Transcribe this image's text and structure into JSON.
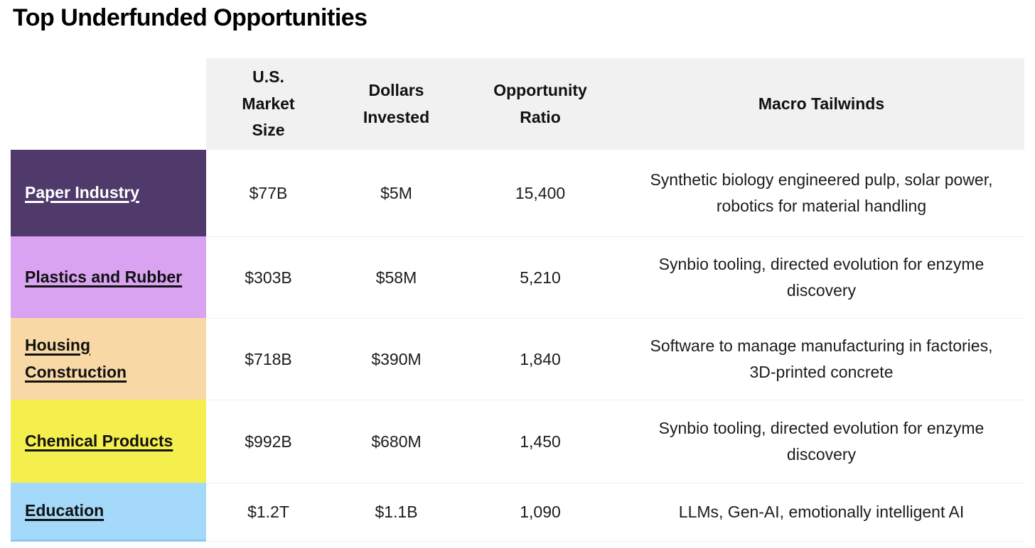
{
  "page": {
    "title": "Top Underfunded Opportunities"
  },
  "table": {
    "headers": {
      "market_size": "U.S.\nMarket\nSize",
      "dollars_invested": "Dollars\nInvested",
      "opportunity_ratio": "Opportunity\nRatio",
      "macro_tailwinds": "Macro Tailwinds"
    },
    "rows": [
      {
        "label": "Paper Industry",
        "label_bg": "#503a6b",
        "label_fg": "#ffffff",
        "market_size": "$77B",
        "dollars_invested": "$5M",
        "opportunity_ratio": "15,400",
        "macro_tailwinds": "Synthetic biology engineered pulp, solar power, robotics for material handling"
      },
      {
        "label": "Plastics and Rubber",
        "label_bg": "#d9a3f2",
        "label_fg": "#111111",
        "market_size": "$303B",
        "dollars_invested": "$58M",
        "opportunity_ratio": "5,210",
        "macro_tailwinds": "Synbio tooling, directed evolution for enzyme discovery"
      },
      {
        "label": "Housing Construction",
        "label_bg": "#f8d9a6",
        "label_fg": "#111111",
        "market_size": "$718B",
        "dollars_invested": "$390M",
        "opportunity_ratio": "1,840",
        "macro_tailwinds": "Software to manage manufacturing in factories, 3D-printed concrete"
      },
      {
        "label": "Chemical Products",
        "label_bg": "#f5ef4e",
        "label_fg": "#111111",
        "market_size": "$992B",
        "dollars_invested": "$680M",
        "opportunity_ratio": "1,450",
        "macro_tailwinds": "Synbio tooling, directed evolution for enzyme discovery"
      },
      {
        "label": "Education",
        "label_bg": "#a5d9f9",
        "label_fg": "#111111",
        "market_size": "$1.2T",
        "dollars_invested": "$1.1B",
        "opportunity_ratio": "1,090",
        "macro_tailwinds": "LLMs, Gen-AI, emotionally intelligent AI"
      }
    ]
  },
  "colors": {
    "header_bg": "#f1f1f1",
    "row_separator": "#f0f0f0",
    "education_bottom_edge": "#8cc7ef",
    "title_text": "#000000",
    "body_text": "#1c1c1c"
  }
}
